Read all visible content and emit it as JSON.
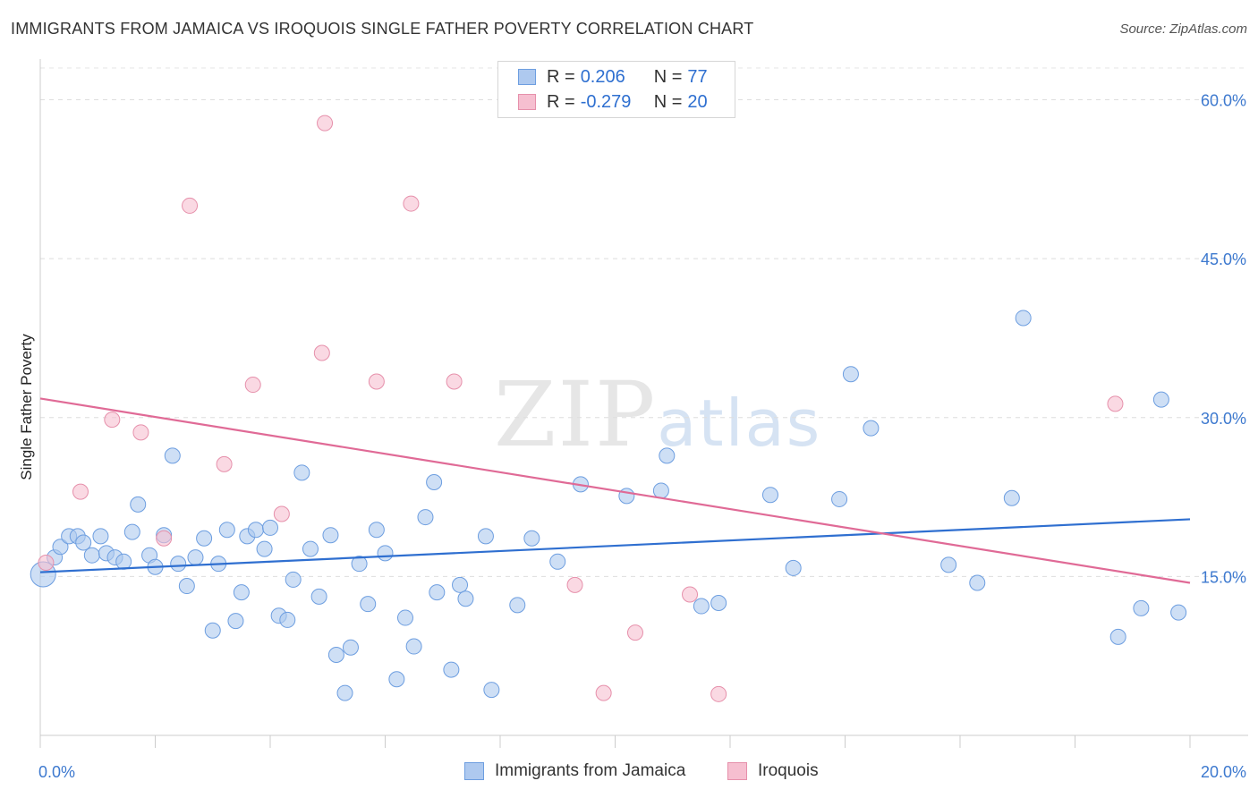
{
  "header": {
    "title": "IMMIGRANTS FROM JAMAICA VS IROQUOIS SINGLE FATHER POVERTY CORRELATION CHART",
    "source": "Source: ZipAtlas.com"
  },
  "watermark": {
    "zip": "ZIP",
    "atlas": "atlas"
  },
  "legend": {
    "rows": [
      {
        "r_label": "R = ",
        "r_value": "0.206",
        "n_label": "N = ",
        "n_value": "77",
        "color": "#aec9ef",
        "stroke": "#6d9ee0"
      },
      {
        "r_label": "R = ",
        "r_value": "-0.279",
        "n_label": "N = ",
        "n_value": "20",
        "color": "#f6bfd0",
        "stroke": "#e690ab"
      }
    ]
  },
  "bottom_legend": {
    "items": [
      {
        "label": "Immigrants from Jamaica",
        "color": "#aec9ef",
        "stroke": "#6d9ee0"
      },
      {
        "label": "Iroquois",
        "color": "#f6bfd0",
        "stroke": "#e690ab"
      }
    ]
  },
  "chart_data": {
    "type": "scatter",
    "title": "IMMIGRANTS FROM JAMAICA VS IROQUOIS SINGLE FATHER POVERTY CORRELATION CHART",
    "xlabel": "",
    "ylabel": "Single Father Poverty",
    "xlim": [
      0,
      20
    ],
    "ylim": [
      0,
      63
    ],
    "x_tick_labels": [
      "0.0%",
      "20.0%"
    ],
    "y_tick_labels": [
      "15.0%",
      "30.0%",
      "45.0%",
      "60.0%"
    ],
    "y_ticks": [
      15,
      30,
      45,
      60
    ],
    "grid": true,
    "legend_position": "top-center",
    "series": [
      {
        "name": "Immigrants from Jamaica",
        "color": "#aec9ef",
        "stroke": "#6d9ee0",
        "line_color": "#2f6fd0",
        "trend": [
          [
            0,
            15.4
          ],
          [
            20,
            20.4
          ]
        ],
        "points": [
          [
            0.05,
            15.2
          ],
          [
            0.25,
            16.8
          ],
          [
            0.35,
            17.8
          ],
          [
            0.5,
            18.8
          ],
          [
            0.65,
            18.8
          ],
          [
            0.75,
            18.2
          ],
          [
            0.9,
            17.0
          ],
          [
            1.05,
            18.8
          ],
          [
            1.15,
            17.2
          ],
          [
            1.3,
            16.8
          ],
          [
            1.45,
            16.4
          ],
          [
            1.6,
            19.2
          ],
          [
            1.7,
            21.8
          ],
          [
            1.9,
            17.0
          ],
          [
            2.0,
            15.9
          ],
          [
            2.15,
            18.9
          ],
          [
            2.3,
            26.4
          ],
          [
            2.4,
            16.2
          ],
          [
            2.55,
            14.1
          ],
          [
            2.7,
            16.8
          ],
          [
            2.85,
            18.6
          ],
          [
            3.0,
            9.9
          ],
          [
            3.1,
            16.2
          ],
          [
            3.25,
            19.4
          ],
          [
            3.4,
            10.8
          ],
          [
            3.5,
            13.5
          ],
          [
            3.6,
            18.8
          ],
          [
            3.75,
            19.4
          ],
          [
            3.9,
            17.6
          ],
          [
            4.0,
            19.6
          ],
          [
            4.15,
            11.3
          ],
          [
            4.3,
            10.9
          ],
          [
            4.4,
            14.7
          ],
          [
            4.55,
            24.8
          ],
          [
            4.7,
            17.6
          ],
          [
            4.85,
            13.1
          ],
          [
            5.05,
            18.9
          ],
          [
            5.15,
            7.6
          ],
          [
            5.3,
            4.0
          ],
          [
            5.4,
            8.3
          ],
          [
            5.55,
            16.2
          ],
          [
            5.7,
            12.4
          ],
          [
            5.85,
            19.4
          ],
          [
            6.0,
            17.2
          ],
          [
            6.2,
            5.3
          ],
          [
            6.35,
            11.1
          ],
          [
            6.5,
            8.4
          ],
          [
            6.7,
            20.6
          ],
          [
            6.85,
            23.9
          ],
          [
            6.9,
            13.5
          ],
          [
            7.15,
            6.2
          ],
          [
            7.3,
            14.2
          ],
          [
            7.4,
            12.9
          ],
          [
            7.75,
            18.8
          ],
          [
            7.85,
            4.3
          ],
          [
            8.3,
            12.3
          ],
          [
            8.55,
            18.6
          ],
          [
            9.0,
            16.4
          ],
          [
            9.4,
            23.7
          ],
          [
            10.2,
            22.6
          ],
          [
            10.8,
            23.1
          ],
          [
            10.9,
            26.4
          ],
          [
            11.5,
            12.2
          ],
          [
            11.8,
            12.5
          ],
          [
            12.7,
            22.7
          ],
          [
            13.1,
            15.8
          ],
          [
            13.9,
            22.3
          ],
          [
            14.1,
            34.1
          ],
          [
            14.45,
            29.0
          ],
          [
            15.8,
            16.1
          ],
          [
            16.3,
            14.4
          ],
          [
            16.9,
            22.4
          ],
          [
            17.1,
            39.4
          ],
          [
            18.75,
            9.3
          ],
          [
            19.15,
            12.0
          ],
          [
            19.5,
            31.7
          ],
          [
            19.8,
            11.6
          ]
        ]
      },
      {
        "name": "Iroquois",
        "color": "#f6bfd0",
        "stroke": "#e690ab",
        "line_color": "#e06a96",
        "trend": [
          [
            0,
            31.8
          ],
          [
            20,
            14.4
          ]
        ],
        "points": [
          [
            0.1,
            16.3
          ],
          [
            0.7,
            23.0
          ],
          [
            1.25,
            29.8
          ],
          [
            1.75,
            28.6
          ],
          [
            2.15,
            18.6
          ],
          [
            2.6,
            50.0
          ],
          [
            3.2,
            25.6
          ],
          [
            3.7,
            33.1
          ],
          [
            4.2,
            20.9
          ],
          [
            4.9,
            36.1
          ],
          [
            4.95,
            57.8
          ],
          [
            5.85,
            33.4
          ],
          [
            6.45,
            50.2
          ],
          [
            7.2,
            33.4
          ],
          [
            9.3,
            14.2
          ],
          [
            9.8,
            4.0
          ],
          [
            10.35,
            9.7
          ],
          [
            11.3,
            13.3
          ],
          [
            11.8,
            3.9
          ],
          [
            18.7,
            31.3
          ]
        ]
      }
    ]
  }
}
